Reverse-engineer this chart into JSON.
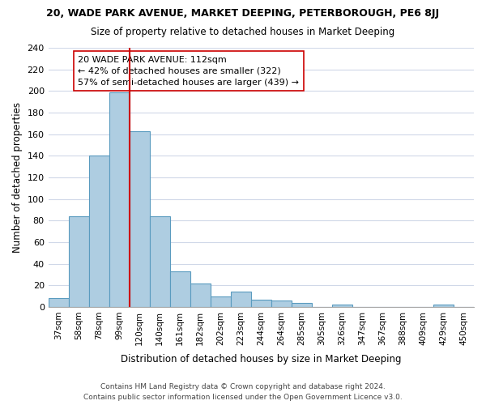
{
  "title": "20, WADE PARK AVENUE, MARKET DEEPING, PETERBOROUGH, PE6 8JJ",
  "subtitle": "Size of property relative to detached houses in Market Deeping",
  "xlabel": "Distribution of detached houses by size in Market Deeping",
  "ylabel": "Number of detached properties",
  "bar_color": "#aecde1",
  "bar_edge_color": "#5a9bbf",
  "categories": [
    "37sqm",
    "58sqm",
    "78sqm",
    "99sqm",
    "120sqm",
    "140sqm",
    "161sqm",
    "182sqm",
    "202sqm",
    "223sqm",
    "244sqm",
    "264sqm",
    "285sqm",
    "305sqm",
    "326sqm",
    "347sqm",
    "367sqm",
    "388sqm",
    "409sqm",
    "429sqm",
    "450sqm"
  ],
  "values": [
    8,
    84,
    140,
    199,
    163,
    84,
    33,
    22,
    10,
    14,
    7,
    6,
    4,
    0,
    2,
    0,
    0,
    0,
    0,
    2,
    0
  ],
  "vline_x": 3.5,
  "vline_color": "#cc0000",
  "annotation_title": "20 WADE PARK AVENUE: 112sqm",
  "annotation_line1": "← 42% of detached houses are smaller (322)",
  "annotation_line2": "57% of semi-detached houses are larger (439) →",
  "ylim": [
    0,
    240
  ],
  "yticks": [
    0,
    20,
    40,
    60,
    80,
    100,
    120,
    140,
    160,
    180,
    200,
    220,
    240
  ],
  "footer1": "Contains HM Land Registry data © Crown copyright and database right 2024.",
  "footer2": "Contains public sector information licensed under the Open Government Licence v3.0.",
  "background_color": "#ffffff",
  "grid_color": "#d0d8e8"
}
